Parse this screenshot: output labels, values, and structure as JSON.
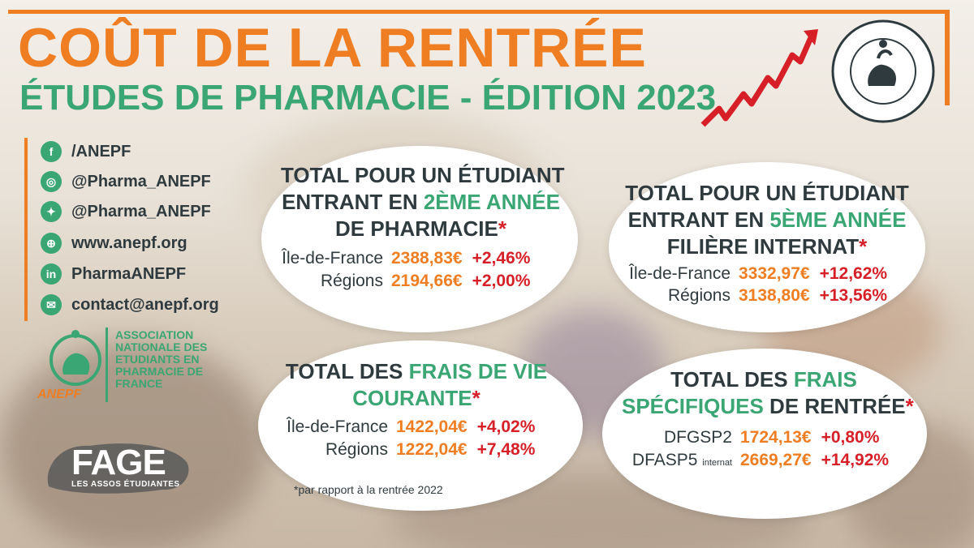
{
  "title": "COÛT DE LA RENTRÉE",
  "subtitle": "ÉTUDES DE PHARMACIE - ÉDITION 2023",
  "colors": {
    "orange": "#ef7d22",
    "green": "#3aa673",
    "red": "#d61f26",
    "dark": "#2f3a3f"
  },
  "social": [
    {
      "icon": "facebook-icon",
      "text": "/ANEPF"
    },
    {
      "icon": "instagram-icon",
      "text": "@Pharma_ANEPF"
    },
    {
      "icon": "twitter-icon",
      "text": "@Pharma_ANEPF"
    },
    {
      "icon": "globe-icon",
      "text": "www.anepf.org"
    },
    {
      "icon": "linkedin-icon",
      "text": "PharmaANEPF"
    },
    {
      "icon": "mail-icon",
      "text": "contact@anepf.org"
    }
  ],
  "association": {
    "name": "ASSOCIATION NATIONALE DES ETUDIANTS EN PHARMACIE DE FRANCE",
    "acronym": "ANEPF",
    "seal_text": "ANEPF • ASSOCIATION NATIONALE DES ETUDIANTS EN PHARMACIE DE FRANCE •"
  },
  "fage": {
    "name": "FAGE",
    "tagline": "LES ASSOS ÉTUDIANTES"
  },
  "cards": {
    "second_year": {
      "line1": "TOTAL POUR UN ÉTUDIANT",
      "line2_prefix": "ENTRANT EN ",
      "line2_highlight": "2ÈME ANNÉE",
      "line3": "DE PHARMACIE",
      "star": "*",
      "rows": [
        {
          "label": "Île-de-France",
          "value": "2388,83€",
          "change": "+2,46%"
        },
        {
          "label": "Régions",
          "value": "2194,66€",
          "change": "+2,00%"
        }
      ]
    },
    "fifth_year": {
      "line1": "TOTAL POUR UN ÉTUDIANT",
      "line2_prefix": "ENTRANT EN ",
      "line2_highlight": "5ÈME ANNÉE",
      "line3": "FILIÈRE INTERNAT",
      "star": "*",
      "rows": [
        {
          "label": "Île-de-France",
          "value": "3332,97€",
          "change": "+12,62%"
        },
        {
          "label": "Régions",
          "value": "3138,80€",
          "change": "+13,56%"
        }
      ]
    },
    "living": {
      "line1_prefix": "TOTAL DES ",
      "line1_highlight": "FRAIS DE VIE",
      "line2_highlight": "COURANTE",
      "star": "*",
      "rows": [
        {
          "label": "Île-de-France",
          "value": "1422,04€",
          "change": "+4,02%"
        },
        {
          "label": "Régions",
          "value": "1222,04€",
          "change": "+7,48%"
        }
      ]
    },
    "specific": {
      "line1_prefix": "TOTAL DES ",
      "line1_highlight": "FRAIS",
      "line2_highlight": "SPÉCIFIQUES",
      "line2_suffix": " DE RENTRÉE",
      "star": "*",
      "rows": [
        {
          "label": "DFGSP2",
          "value": "1724,13€",
          "change": "+0,80%"
        },
        {
          "label": "DFASP5",
          "label_small": "internat",
          "value": "2669,27€",
          "change": "+14,92%"
        }
      ]
    }
  },
  "footnote": "*par rapport à la rentrée 2022"
}
